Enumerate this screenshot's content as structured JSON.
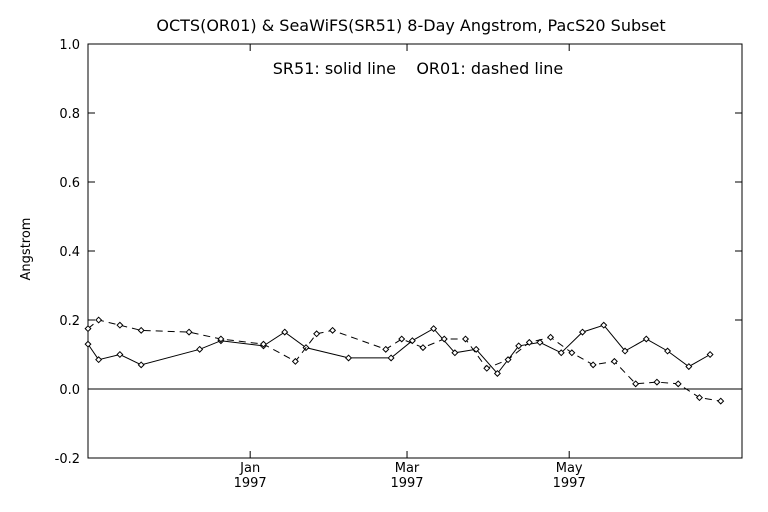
{
  "chart_data": {
    "type": "line",
    "title": "OCTS(OR01) & SeaWiFS(SR51) 8-Day Angstrom, PacS20 Subset",
    "annotation": "SR51: solid line    OR01: dashed line",
    "xlabel": "",
    "ylabel": "Angstrom",
    "ylim": [
      -0.2,
      1.0
    ],
    "yticks": [
      "-0.2",
      "0.0",
      "0.2",
      "0.4",
      "0.6",
      "0.8",
      "1.0"
    ],
    "xlim": [
      "1996-11-01",
      "1997-07-05"
    ],
    "xticks": [
      {
        "date": "1997-01-01",
        "label": "Jan",
        "year": "1997"
      },
      {
        "date": "1997-03-01",
        "label": "Mar",
        "year": "1997"
      },
      {
        "date": "1997-05-01",
        "label": "May",
        "year": "1997"
      }
    ],
    "reference_line_y": 0.0,
    "grid": false,
    "series": [
      {
        "name": "SR51",
        "style": "solid",
        "x": [
          "1996-11-01",
          "1996-11-05",
          "1996-11-13",
          "1996-11-21",
          "1996-12-13",
          "1996-12-21",
          "1997-01-06",
          "1997-01-14",
          "1997-01-22",
          "1997-02-07",
          "1997-02-23",
          "1997-03-03",
          "1997-03-11",
          "1997-03-19",
          "1997-03-27",
          "1997-04-04",
          "1997-04-12",
          "1997-04-20",
          "1997-04-28",
          "1997-05-06",
          "1997-05-14",
          "1997-05-22",
          "1997-05-30",
          "1997-06-07",
          "1997-06-15",
          "1997-06-23"
        ],
        "y": [
          0.13,
          0.085,
          0.1,
          0.07,
          0.115,
          0.14,
          0.125,
          0.165,
          0.12,
          0.09,
          0.09,
          0.14,
          0.175,
          0.105,
          0.115,
          0.045,
          0.125,
          0.135,
          0.105,
          0.165,
          0.185,
          0.11,
          0.145,
          0.11,
          0.065,
          0.1
        ]
      },
      {
        "name": "OR01",
        "style": "dashed",
        "x": [
          "1996-11-01",
          "1996-11-05",
          "1996-11-13",
          "1996-11-21",
          "1996-12-09",
          "1996-12-21",
          "1997-01-06",
          "1997-01-18",
          "1997-01-26",
          "1997-02-01",
          "1997-02-21",
          "1997-02-27",
          "1997-03-07",
          "1997-03-15",
          "1997-03-23",
          "1997-03-31",
          "1997-04-08",
          "1997-04-16",
          "1997-04-24",
          "1997-05-02",
          "1997-05-10",
          "1997-05-18",
          "1997-05-26",
          "1997-06-03",
          "1997-06-11",
          "1997-06-19",
          "1997-06-27"
        ],
        "y": [
          0.175,
          0.2,
          0.185,
          0.17,
          0.165,
          0.145,
          0.13,
          0.08,
          0.16,
          0.17,
          0.115,
          0.145,
          0.12,
          0.145,
          0.145,
          0.06,
          0.085,
          0.135,
          0.15,
          0.105,
          0.07,
          0.08,
          0.015,
          0.02,
          0.015,
          -0.025,
          -0.035
        ]
      }
    ]
  }
}
